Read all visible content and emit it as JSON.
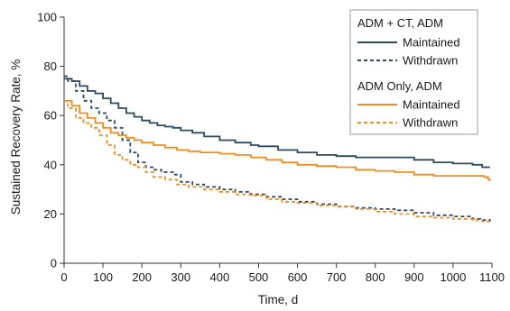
{
  "chart_data": {
    "type": "line",
    "title": "",
    "xlabel": "Time, d",
    "ylabel": "Sustained Recovery Rate, %",
    "xlim": [
      0,
      1100
    ],
    "ylim": [
      0,
      100
    ],
    "x_ticks": [
      0,
      100,
      200,
      300,
      400,
      500,
      600,
      700,
      800,
      900,
      1000,
      1100
    ],
    "y_ticks": [
      0,
      20,
      40,
      60,
      80,
      100
    ],
    "grid": false,
    "legend_position": "top-right",
    "legend_groups": [
      {
        "title": "ADM + CT, ADM",
        "entries": [
          "Maintained",
          "Withdrawn"
        ]
      },
      {
        "title": "ADM Only, ADM",
        "entries": [
          "Maintained",
          "Withdrawn"
        ]
      }
    ],
    "series": [
      {
        "name": "ADM + CT, ADM Maintained",
        "group": "ADM + CT, ADM",
        "color": "#2e4a5e",
        "dashed": false,
        "points": [
          [
            0,
            75
          ],
          [
            20,
            74
          ],
          [
            40,
            72
          ],
          [
            60,
            70
          ],
          [
            80,
            69
          ],
          [
            100,
            67
          ],
          [
            120,
            65
          ],
          [
            140,
            63
          ],
          [
            160,
            61
          ],
          [
            180,
            59.5
          ],
          [
            200,
            58
          ],
          [
            220,
            57
          ],
          [
            240,
            56
          ],
          [
            260,
            55.5
          ],
          [
            280,
            55
          ],
          [
            300,
            54
          ],
          [
            330,
            53
          ],
          [
            360,
            51.5
          ],
          [
            400,
            50
          ],
          [
            440,
            49
          ],
          [
            480,
            48
          ],
          [
            500,
            47.5
          ],
          [
            550,
            46
          ],
          [
            600,
            45
          ],
          [
            650,
            44
          ],
          [
            700,
            43.5
          ],
          [
            750,
            43
          ],
          [
            800,
            43
          ],
          [
            850,
            43
          ],
          [
            900,
            42
          ],
          [
            950,
            41
          ],
          [
            1000,
            40.5
          ],
          [
            1050,
            40
          ],
          [
            1075,
            39
          ],
          [
            1095,
            39
          ]
        ]
      },
      {
        "name": "ADM + CT, ADM Withdrawn",
        "group": "ADM + CT, ADM",
        "color": "#2e4a5e",
        "dashed": true,
        "points": [
          [
            0,
            76
          ],
          [
            10,
            74
          ],
          [
            30,
            70
          ],
          [
            50,
            66
          ],
          [
            70,
            63
          ],
          [
            90,
            61
          ],
          [
            110,
            58
          ],
          [
            130,
            55
          ],
          [
            150,
            50
          ],
          [
            170,
            45
          ],
          [
            190,
            41
          ],
          [
            210,
            39
          ],
          [
            230,
            38
          ],
          [
            250,
            37
          ],
          [
            280,
            36
          ],
          [
            300,
            33
          ],
          [
            330,
            32
          ],
          [
            360,
            31
          ],
          [
            400,
            30
          ],
          [
            440,
            29
          ],
          [
            480,
            28
          ],
          [
            520,
            27
          ],
          [
            560,
            26
          ],
          [
            600,
            25
          ],
          [
            650,
            24
          ],
          [
            700,
            23
          ],
          [
            750,
            22.5
          ],
          [
            800,
            22
          ],
          [
            850,
            21.5
          ],
          [
            900,
            20.5
          ],
          [
            950,
            19.5
          ],
          [
            1000,
            19
          ],
          [
            1050,
            18
          ],
          [
            1070,
            17.5
          ],
          [
            1095,
            17
          ]
        ]
      },
      {
        "name": "ADM Only, ADM Maintained",
        "group": "ADM Only, ADM",
        "color": "#f28c1e",
        "dashed": false,
        "points": [
          [
            0,
            66
          ],
          [
            20,
            64
          ],
          [
            40,
            61
          ],
          [
            60,
            59
          ],
          [
            80,
            57
          ],
          [
            100,
            55
          ],
          [
            120,
            53
          ],
          [
            140,
            52
          ],
          [
            160,
            51
          ],
          [
            180,
            50
          ],
          [
            200,
            49
          ],
          [
            230,
            48
          ],
          [
            260,
            47
          ],
          [
            290,
            46
          ],
          [
            320,
            45.5
          ],
          [
            350,
            45
          ],
          [
            400,
            44.5
          ],
          [
            440,
            44
          ],
          [
            480,
            43
          ],
          [
            520,
            42
          ],
          [
            560,
            41
          ],
          [
            600,
            40
          ],
          [
            650,
            39.5
          ],
          [
            700,
            39
          ],
          [
            750,
            38
          ],
          [
            800,
            37.5
          ],
          [
            850,
            37
          ],
          [
            900,
            36
          ],
          [
            950,
            35.5
          ],
          [
            1000,
            35.5
          ],
          [
            1050,
            35.5
          ],
          [
            1080,
            35
          ],
          [
            1090,
            34
          ],
          [
            1095,
            33.5
          ]
        ]
      },
      {
        "name": "ADM Only, ADM Withdrawn",
        "group": "ADM Only, ADM",
        "color": "#f28c1e",
        "dashed": true,
        "points": [
          [
            0,
            66
          ],
          [
            10,
            63
          ],
          [
            30,
            59
          ],
          [
            50,
            57
          ],
          [
            70,
            55
          ],
          [
            90,
            52
          ],
          [
            110,
            48
          ],
          [
            130,
            44
          ],
          [
            150,
            42
          ],
          [
            170,
            40
          ],
          [
            190,
            39
          ],
          [
            210,
            37
          ],
          [
            230,
            35
          ],
          [
            260,
            34
          ],
          [
            290,
            32
          ],
          [
            320,
            31
          ],
          [
            360,
            30
          ],
          [
            400,
            29
          ],
          [
            440,
            28
          ],
          [
            480,
            27.5
          ],
          [
            520,
            26
          ],
          [
            560,
            25
          ],
          [
            600,
            24.5
          ],
          [
            650,
            23.5
          ],
          [
            700,
            23
          ],
          [
            750,
            22
          ],
          [
            800,
            21
          ],
          [
            850,
            20
          ],
          [
            900,
            19
          ],
          [
            950,
            18.5
          ],
          [
            1000,
            18
          ],
          [
            1050,
            17.5
          ],
          [
            1075,
            17
          ],
          [
            1095,
            16
          ]
        ]
      }
    ]
  }
}
